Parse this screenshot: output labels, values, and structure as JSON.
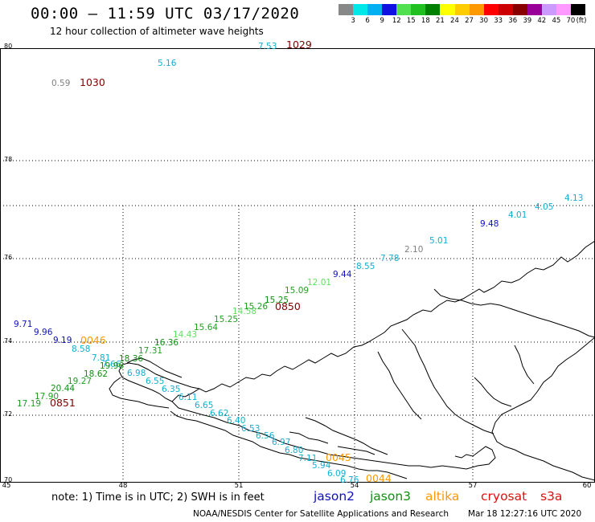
{
  "header": {
    "title": "00:00 – 11:59 UTC 03/17/2020",
    "subtitle": "12 hour collection of altimeter wave heights"
  },
  "legend": {
    "colors": [
      "#888888",
      "#00e8e8",
      "#00b0f0",
      "#1010e0",
      "#50e050",
      "#20c020",
      "#008000",
      "#ffff00",
      "#ffcc00",
      "#ff9900",
      "#ff0000",
      "#cc0000",
      "#880000",
      "#990099",
      "#cc99ff",
      "#ff99ff",
      "#000000"
    ],
    "ticks": [
      "3",
      "6",
      "9",
      "12",
      "15",
      "18",
      "21",
      "24",
      "27",
      "30",
      "33",
      "36",
      "39",
      "42",
      "45",
      "70"
    ],
    "unit": "(ft)"
  },
  "axes": {
    "lat_labels": [
      "80",
      "78",
      "76",
      "74",
      "72",
      "70"
    ],
    "lon_labels": [
      "45",
      "48",
      "51",
      "54",
      "57",
      "60"
    ]
  },
  "colors": {
    "jason2": "#1010c0",
    "jason3": "#109010",
    "altika": "#ff9900",
    "cryosat": "#e01010",
    "time_label": "#800000",
    "cyan": "#10b0d0",
    "gray": "#808080",
    "green": "#20a020",
    "light_green": "#60e060"
  },
  "observations": [
    {
      "text": "7.53",
      "color": "#10b0d0"
    },
    {
      "text": "5.16",
      "color": "#10b0d0"
    },
    {
      "text": "0.59",
      "color": "#808080"
    },
    {
      "text": "9.71",
      "color": "#1010c0"
    },
    {
      "text": "9.96",
      "color": "#1010c0"
    },
    {
      "text": "9.19",
      "color": "#1010c0"
    },
    {
      "text": "8.58",
      "color": "#10b0d0"
    },
    {
      "text": "7.81",
      "color": "#10b0d0"
    },
    {
      "text": "7.66",
      "color": "#10b0d0"
    },
    {
      "text": "6.98",
      "color": "#10b0d0"
    },
    {
      "text": "6.55",
      "color": "#10b0d0"
    },
    {
      "text": "6.35",
      "color": "#10b0d0"
    },
    {
      "text": "6.11",
      "color": "#10b0d0"
    },
    {
      "text": "6.65",
      "color": "#10b0d0"
    },
    {
      "text": "6.62",
      "color": "#10b0d0"
    },
    {
      "text": "6.40",
      "color": "#10b0d0"
    },
    {
      "text": "6.53",
      "color": "#10b0d0"
    },
    {
      "text": "6.56",
      "color": "#10b0d0"
    },
    {
      "text": "6.97",
      "color": "#10b0d0"
    },
    {
      "text": "6.80",
      "color": "#10b0d0"
    },
    {
      "text": "7.11",
      "color": "#10b0d0"
    },
    {
      "text": "5.94",
      "color": "#10b0d0"
    },
    {
      "text": "6.09",
      "color": "#10b0d0"
    },
    {
      "text": "6.76",
      "color": "#10b0d0"
    },
    {
      "text": "17.19",
      "color": "#20a020"
    },
    {
      "text": "17.90",
      "color": "#20a020"
    },
    {
      "text": "20.44",
      "color": "#109010"
    },
    {
      "text": "19.27",
      "color": "#20a020"
    },
    {
      "text": "18.62",
      "color": "#109010"
    },
    {
      "text": "19.96",
      "color": "#109010"
    },
    {
      "text": "18.36",
      "color": "#109010"
    },
    {
      "text": "17.31",
      "color": "#20a020"
    },
    {
      "text": "16.36",
      "color": "#109010"
    },
    {
      "text": "14.43",
      "color": "#60e060"
    },
    {
      "text": "15.64",
      "color": "#20a020"
    },
    {
      "text": "15.25",
      "color": "#20a020"
    },
    {
      "text": "14.58",
      "color": "#60e060"
    },
    {
      "text": "15.26",
      "color": "#20a020"
    },
    {
      "text": "15.25",
      "color": "#109010"
    },
    {
      "text": "15.09",
      "color": "#20a020"
    },
    {
      "text": "12.01",
      "color": "#60e060"
    },
    {
      "text": "9.44",
      "color": "#1010c0"
    },
    {
      "text": "8.55",
      "color": "#10b0d0"
    },
    {
      "text": "7.78",
      "color": "#10b0d0"
    },
    {
      "text": "2.10",
      "color": "#808080"
    },
    {
      "text": "5.01",
      "color": "#10b0d0"
    },
    {
      "text": "9.48",
      "color": "#1010c0"
    },
    {
      "text": "4.01",
      "color": "#10b0d0"
    },
    {
      "text": "4.05",
      "color": "#10b0d0"
    },
    {
      "text": "4.13",
      "color": "#10b0d0"
    }
  ],
  "time_labels": [
    {
      "text": "1029",
      "color": "#800000"
    },
    {
      "text": "1030",
      "color": "#800000"
    },
    {
      "text": "0850",
      "color": "#800000"
    },
    {
      "text": "0046",
      "color": "#ff9900"
    },
    {
      "text": "0851",
      "color": "#800000"
    },
    {
      "text": "0045",
      "color": "#ff9900"
    },
    {
      "text": "0044",
      "color": "#ff9900"
    }
  ],
  "notes": {
    "note": "note:  1) Time is in UTC;  2) SWH is in feet",
    "missions": [
      {
        "name": "jason2",
        "color": "#1010c0"
      },
      {
        "name": "jason3",
        "color": "#109010"
      },
      {
        "name": "altika",
        "color": "#ff9900"
      },
      {
        "name": "cryosat",
        "color": "#e01010"
      },
      {
        "name": "s3a",
        "color": "#e01010"
      }
    ],
    "footer_left": "NOAA/NESDIS Center for Satellite Applications and Research",
    "footer_right": "Mar 18 12:27:16 UTC 2020"
  }
}
